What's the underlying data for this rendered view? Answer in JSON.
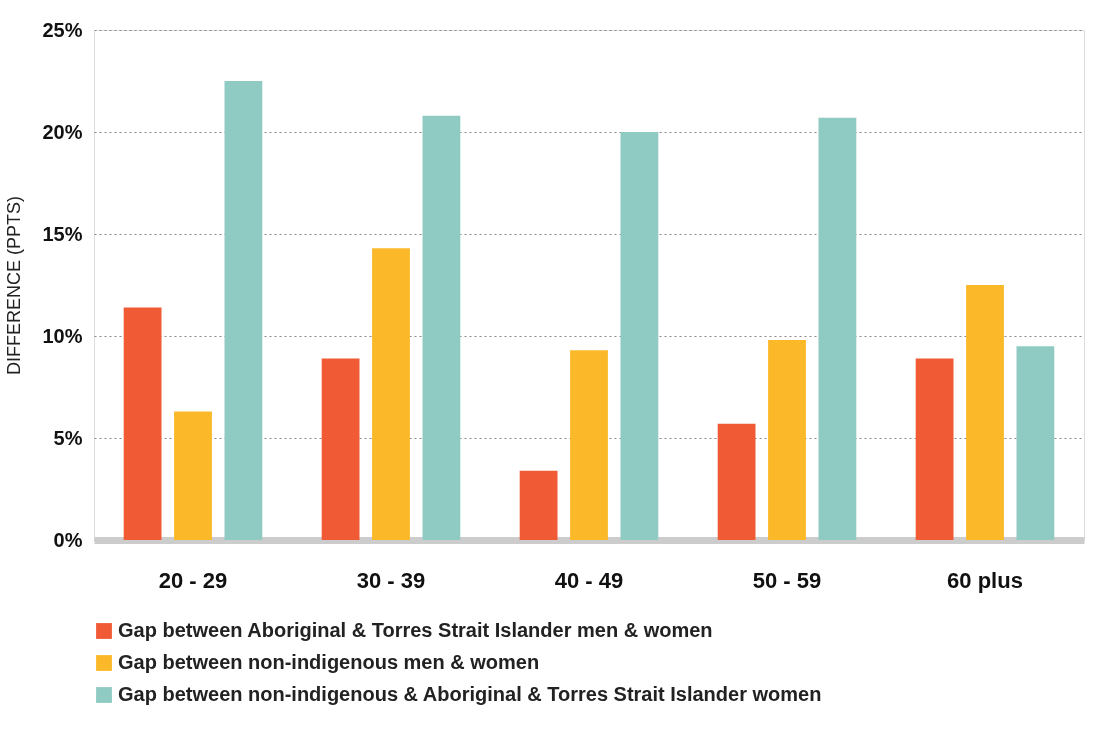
{
  "chart_data": {
    "type": "bar",
    "ylabel": "DIFFERENCE (PPTS)",
    "categories": [
      "20 - 29",
      "30 - 39",
      "40 - 49",
      "50 - 59",
      "60 plus"
    ],
    "series": [
      {
        "name": "Gap between Aboriginal & Torres Strait Islander men & women",
        "color": "#f05a35",
        "values": [
          11.4,
          8.9,
          3.4,
          5.7,
          8.9
        ]
      },
      {
        "name": "Gap between non-indigenous men & women",
        "color": "#fbb829",
        "values": [
          6.3,
          14.3,
          9.3,
          9.8,
          12.5
        ]
      },
      {
        "name": "Gap between non-indigenous & Aboriginal & Torres Strait Islander women",
        "color": "#8fcac3",
        "values": [
          22.5,
          20.8,
          20.0,
          20.7,
          9.5
        ]
      }
    ],
    "ylim": [
      0,
      25
    ],
    "yticks": [
      {
        "value": 0,
        "label": "0%"
      },
      {
        "value": 5,
        "label": "5%"
      },
      {
        "value": 10,
        "label": "10%"
      },
      {
        "value": 15,
        "label": "15%"
      },
      {
        "value": 20,
        "label": "20%"
      },
      {
        "value": 25,
        "label": "25%"
      }
    ],
    "grid": "y",
    "legend": "bottom"
  }
}
